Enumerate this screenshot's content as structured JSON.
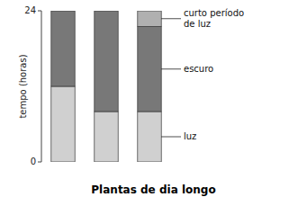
{
  "chart_data": {
    "type": "bar",
    "stacked": true,
    "title": "Plantas de dia longo",
    "y_label": "tempo (horas)",
    "categories": [
      null,
      null,
      null
    ],
    "series": [
      {
        "name": "luz",
        "color": "#d0d0d0",
        "values": [
          12,
          8,
          8
        ]
      },
      {
        "name": "escuro",
        "color": "#787878",
        "values": [
          12,
          16,
          13.5
        ]
      },
      {
        "name": "curto período\nde luz",
        "color": "#b0b0b0",
        "values": [
          0,
          0,
          2.5
        ]
      }
    ],
    "ylim": [
      0,
      24
    ],
    "yticks": [
      0,
      24
    ],
    "grid": false,
    "tick_labels": "y"
  }
}
